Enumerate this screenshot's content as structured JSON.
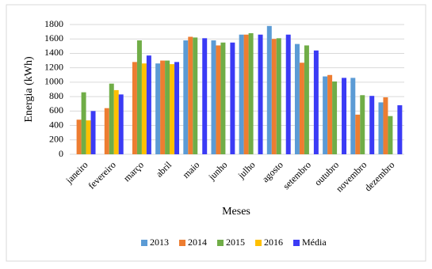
{
  "chart_data": {
    "type": "bar",
    "x_label": "Meses",
    "y_label": "Energia (kWh)",
    "categories": [
      "janeiro",
      "fevereiro",
      "março",
      "abril",
      "maio",
      "junho",
      "julho",
      "agosto",
      "setembro",
      "outubro",
      "novembro",
      "dezembro"
    ],
    "series": [
      {
        "name": "2013",
        "color": "#5b9bd5",
        "values": [
          null,
          null,
          null,
          1260,
          1580,
          1580,
          1660,
          1780,
          1530,
          1080,
          1060,
          720
        ]
      },
      {
        "name": "2014",
        "color": "#ed7d31",
        "values": [
          480,
          640,
          1280,
          1300,
          1630,
          1510,
          1660,
          1600,
          1270,
          1100,
          550,
          790
        ]
      },
      {
        "name": "2015",
        "color": "#70ad47",
        "values": [
          860,
          980,
          1580,
          1300,
          1620,
          1550,
          1680,
          1610,
          1510,
          1010,
          820,
          530
        ]
      },
      {
        "name": "2016",
        "color": "#ffc000",
        "values": [
          470,
          890,
          1260,
          1250,
          null,
          null,
          null,
          null,
          null,
          null,
          null,
          null
        ]
      },
      {
        "name": "Média",
        "color": "#3b3bf5",
        "values": [
          600,
          830,
          1370,
          1280,
          1610,
          1550,
          1660,
          1660,
          1440,
          1060,
          810,
          680
        ]
      }
    ],
    "ylim": [
      0,
      1800
    ],
    "yticks": [
      0,
      200,
      400,
      600,
      800,
      1000,
      1200,
      1400,
      1600,
      1800
    ],
    "grid": true
  }
}
